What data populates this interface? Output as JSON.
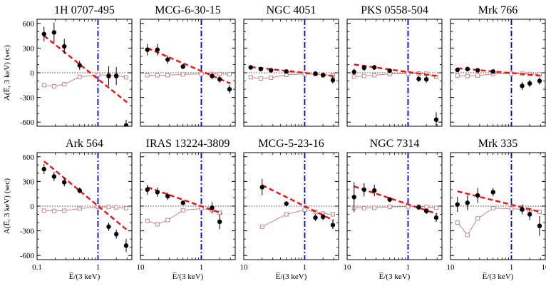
{
  "figure": {
    "ylabel": "A(E̅, 3 keV) (sec)",
    "xlabel": "E̅/(3 keV)",
    "xticks": [
      "0.1",
      "1",
      "10"
    ],
    "yticks": [
      "600",
      "300",
      "0",
      "-300",
      "-600"
    ],
    "colors": {
      "points": "#000000",
      "fit": "#ee1111",
      "model": "#c08888",
      "vline": "#0000ee"
    }
  },
  "chart_data": [
    {
      "type": "scatter",
      "title": "1H 0707-495",
      "xlabel": "E̅/(3 keV)",
      "ylabel": "A(E̅, 3 keV) (sec)",
      "xscale": "log",
      "xlim": [
        0.1,
        3.6
      ],
      "ylim": [
        -650,
        650
      ],
      "points": [
        {
          "x": 0.13,
          "y": 470,
          "err": 90
        },
        {
          "x": 0.19,
          "y": 490,
          "err": 120
        },
        {
          "x": 0.28,
          "y": 320,
          "err": 90
        },
        {
          "x": 0.5,
          "y": 90,
          "err": 55
        },
        {
          "x": 1.5,
          "y": -40,
          "err": 120
        },
        {
          "x": 2.0,
          "y": -40,
          "err": 110
        },
        {
          "x": 2.9,
          "y": -640,
          "err": 70
        }
      ],
      "fit": [
        {
          "x": 0.13,
          "y": 450
        },
        {
          "x": 3.0,
          "y": -360
        }
      ],
      "model": [
        {
          "x": 0.13,
          "y": -150
        },
        {
          "x": 0.19,
          "y": -165
        },
        {
          "x": 0.28,
          "y": -140
        },
        {
          "x": 0.5,
          "y": -50
        },
        {
          "x": 1.0,
          "y": -25
        },
        {
          "x": 1.5,
          "y": -30
        },
        {
          "x": 2.0,
          "y": -35
        },
        {
          "x": 2.9,
          "y": -55
        }
      ]
    },
    {
      "type": "scatter",
      "title": "MCG-6-30-15",
      "xscale": "log",
      "xlim": [
        0.1,
        3.6
      ],
      "ylim": [
        -650,
        650
      ],
      "points": [
        {
          "x": 0.13,
          "y": 280,
          "err": 70
        },
        {
          "x": 0.19,
          "y": 280,
          "err": 70
        },
        {
          "x": 0.28,
          "y": 160,
          "err": 50
        },
        {
          "x": 0.5,
          "y": 75,
          "err": 30
        },
        {
          "x": 1.5,
          "y": -40,
          "err": 40
        },
        {
          "x": 2.0,
          "y": -80,
          "err": 40
        },
        {
          "x": 2.9,
          "y": -200,
          "err": 50
        }
      ],
      "fit": [
        {
          "x": 0.13,
          "y": 300
        },
        {
          "x": 3.0,
          "y": -130
        }
      ],
      "model": [
        {
          "x": 0.13,
          "y": -30
        },
        {
          "x": 0.19,
          "y": -32
        },
        {
          "x": 0.28,
          "y": -30
        },
        {
          "x": 0.5,
          "y": -20
        },
        {
          "x": 1.0,
          "y": -15
        },
        {
          "x": 1.5,
          "y": -15
        },
        {
          "x": 2.0,
          "y": -15
        },
        {
          "x": 2.9,
          "y": -18
        }
      ]
    },
    {
      "type": "scatter",
      "title": "NGC 4051",
      "xscale": "log",
      "xlim": [
        0.1,
        3.6
      ],
      "ylim": [
        -650,
        650
      ],
      "points": [
        {
          "x": 0.13,
          "y": 65,
          "err": 25
        },
        {
          "x": 0.19,
          "y": 45,
          "err": 20
        },
        {
          "x": 0.28,
          "y": 30,
          "err": 15
        },
        {
          "x": 0.5,
          "y": 15,
          "err": 12
        },
        {
          "x": 1.5,
          "y": -10,
          "err": 15
        },
        {
          "x": 2.0,
          "y": -30,
          "err": 20
        },
        {
          "x": 2.9,
          "y": -90,
          "err": 40
        }
      ],
      "fit": [
        {
          "x": 0.13,
          "y": 70
        },
        {
          "x": 3.0,
          "y": -40
        }
      ],
      "model": [
        {
          "x": 0.13,
          "y": -55
        },
        {
          "x": 0.19,
          "y": -70
        },
        {
          "x": 0.28,
          "y": -60
        },
        {
          "x": 0.5,
          "y": -25
        },
        {
          "x": 1.0,
          "y": -15
        },
        {
          "x": 1.5,
          "y": -18
        },
        {
          "x": 2.0,
          "y": -22
        },
        {
          "x": 2.9,
          "y": -35
        }
      ]
    },
    {
      "type": "scatter",
      "title": "PKS 0558-504",
      "xscale": "log",
      "xlim": [
        0.1,
        3.6
      ],
      "ylim": [
        -650,
        650
      ],
      "points": [
        {
          "x": 0.13,
          "y": 10,
          "err": 40
        },
        {
          "x": 0.19,
          "y": 60,
          "err": 35
        },
        {
          "x": 0.28,
          "y": 65,
          "err": 30
        },
        {
          "x": 0.5,
          "y": 25,
          "err": 20
        },
        {
          "x": 1.5,
          "y": -75,
          "err": 35
        },
        {
          "x": 2.0,
          "y": -80,
          "err": 40
        },
        {
          "x": 2.9,
          "y": -570,
          "err": 90
        }
      ],
      "fit": [
        {
          "x": 0.13,
          "y": 100
        },
        {
          "x": 3.0,
          "y": -40
        }
      ],
      "model": [
        {
          "x": 0.13,
          "y": -45
        },
        {
          "x": 0.19,
          "y": -40
        },
        {
          "x": 0.28,
          "y": -30
        },
        {
          "x": 0.5,
          "y": -15
        },
        {
          "x": 1.0,
          "y": -10
        },
        {
          "x": 1.5,
          "y": -10
        },
        {
          "x": 2.0,
          "y": -12
        },
        {
          "x": 2.9,
          "y": -50
        }
      ]
    },
    {
      "type": "scatter",
      "title": "Mrk 766",
      "xscale": "log",
      "xlim": [
        0.1,
        3.6
      ],
      "ylim": [
        -650,
        650
      ],
      "points": [
        {
          "x": 0.13,
          "y": 35,
          "err": 25
        },
        {
          "x": 0.19,
          "y": 45,
          "err": 20
        },
        {
          "x": 0.28,
          "y": 30,
          "err": 20
        },
        {
          "x": 0.5,
          "y": 15,
          "err": 15
        },
        {
          "x": 1.5,
          "y": -160,
          "err": 50
        },
        {
          "x": 2.0,
          "y": -130,
          "err": 45
        },
        {
          "x": 2.9,
          "y": -100,
          "err": 45
        }
      ],
      "fit": [
        {
          "x": 0.13,
          "y": 55
        },
        {
          "x": 3.0,
          "y": -35
        }
      ],
      "model": [
        {
          "x": 0.13,
          "y": -35
        },
        {
          "x": 0.19,
          "y": -40
        },
        {
          "x": 0.28,
          "y": -35
        },
        {
          "x": 0.5,
          "y": -15
        },
        {
          "x": 1.0,
          "y": -10
        },
        {
          "x": 1.5,
          "y": -12
        },
        {
          "x": 2.0,
          "y": -15
        },
        {
          "x": 2.9,
          "y": -20
        }
      ]
    },
    {
      "type": "scatter",
      "title": "Ark 564",
      "xscale": "log",
      "xlim": [
        0.1,
        3.6
      ],
      "ylim": [
        -650,
        650
      ],
      "points": [
        {
          "x": 0.13,
          "y": 450,
          "err": 60
        },
        {
          "x": 0.19,
          "y": 360,
          "err": 55
        },
        {
          "x": 0.28,
          "y": 290,
          "err": 50
        },
        {
          "x": 0.5,
          "y": 190,
          "err": 35
        },
        {
          "x": 1.5,
          "y": -250,
          "err": 50
        },
        {
          "x": 2.0,
          "y": -340,
          "err": 55
        },
        {
          "x": 2.9,
          "y": -480,
          "err": 80
        }
      ],
      "fit": [
        {
          "x": 0.13,
          "y": 545
        },
        {
          "x": 3.0,
          "y": -290
        }
      ],
      "model": [
        {
          "x": 0.13,
          "y": -55
        },
        {
          "x": 0.19,
          "y": -58
        },
        {
          "x": 0.28,
          "y": -55
        },
        {
          "x": 0.5,
          "y": -30
        },
        {
          "x": 1.0,
          "y": -10
        },
        {
          "x": 1.5,
          "y": -10
        },
        {
          "x": 2.0,
          "y": -15
        },
        {
          "x": 2.9,
          "y": -25
        }
      ]
    },
    {
      "type": "scatter",
      "title": "IRAS 13224-3809",
      "xscale": "log",
      "xlim": [
        0.1,
        3.6
      ],
      "ylim": [
        -650,
        650
      ],
      "points": [
        {
          "x": 0.13,
          "y": 200,
          "err": 60
        },
        {
          "x": 0.19,
          "y": 170,
          "err": 55
        },
        {
          "x": 0.28,
          "y": 120,
          "err": 45
        },
        {
          "x": 0.5,
          "y": 40,
          "err": 25
        },
        {
          "x": 1.5,
          "y": -20,
          "err": 70
        },
        {
          "x": 2.0,
          "y": -190,
          "err": 90
        }
      ],
      "fit": [
        {
          "x": 0.13,
          "y": 230
        },
        {
          "x": 2.2,
          "y": -90
        }
      ],
      "model": [
        {
          "x": 0.13,
          "y": -180
        },
        {
          "x": 0.19,
          "y": -220
        },
        {
          "x": 0.28,
          "y": -170
        },
        {
          "x": 0.5,
          "y": -50
        },
        {
          "x": 1.0,
          "y": -30
        },
        {
          "x": 1.5,
          "y": -50
        },
        {
          "x": 2.0,
          "y": -80
        }
      ]
    },
    {
      "type": "scatter",
      "title": "MCG-5-23-16",
      "xscale": "log",
      "xlim": [
        0.1,
        3.6
      ],
      "ylim": [
        -650,
        650
      ],
      "points": [
        {
          "x": 0.2,
          "y": 230,
          "err": 100
        },
        {
          "x": 0.5,
          "y": 30,
          "err": 30
        },
        {
          "x": 1.5,
          "y": -140,
          "err": 40
        },
        {
          "x": 2.0,
          "y": -130,
          "err": 40
        },
        {
          "x": 2.9,
          "y": -230,
          "err": 50
        }
      ],
      "fit": [
        {
          "x": 0.2,
          "y": 255
        },
        {
          "x": 3.0,
          "y": -175
        }
      ],
      "model": [
        {
          "x": 0.2,
          "y": -250
        },
        {
          "x": 0.5,
          "y": -100
        },
        {
          "x": 1.0,
          "y": -45
        },
        {
          "x": 1.5,
          "y": -70
        },
        {
          "x": 2.0,
          "y": -90
        },
        {
          "x": 2.9,
          "y": -100
        }
      ]
    },
    {
      "type": "scatter",
      "title": "NGC 7314",
      "xscale": "log",
      "xlim": [
        0.1,
        3.6
      ],
      "ylim": [
        -650,
        650
      ],
      "points": [
        {
          "x": 0.13,
          "y": 110,
          "err": 180
        },
        {
          "x": 0.19,
          "y": 200,
          "err": 80
        },
        {
          "x": 0.28,
          "y": 190,
          "err": 70
        },
        {
          "x": 0.5,
          "y": 80,
          "err": 30
        },
        {
          "x": 1.5,
          "y": -15,
          "err": 25
        },
        {
          "x": 2.0,
          "y": -60,
          "err": 35
        },
        {
          "x": 2.9,
          "y": -140,
          "err": 50
        }
      ],
      "fit": [
        {
          "x": 0.13,
          "y": 240
        },
        {
          "x": 3.0,
          "y": -95
        }
      ],
      "model": [
        {
          "x": 0.13,
          "y": -20
        },
        {
          "x": 0.19,
          "y": -25
        },
        {
          "x": 0.28,
          "y": -20
        },
        {
          "x": 0.5,
          "y": -10
        },
        {
          "x": 1.0,
          "y": -5
        },
        {
          "x": 1.5,
          "y": -5
        },
        {
          "x": 2.0,
          "y": -10
        },
        {
          "x": 2.9,
          "y": -20
        }
      ]
    },
    {
      "type": "scatter",
      "title": "Mrk 335",
      "xscale": "log",
      "xlim": [
        0.1,
        3.6
      ],
      "ylim": [
        -650,
        650
      ],
      "points": [
        {
          "x": 0.13,
          "y": 20,
          "err": 90
        },
        {
          "x": 0.19,
          "y": 40,
          "err": 90
        },
        {
          "x": 0.28,
          "y": 130,
          "err": 90
        },
        {
          "x": 0.5,
          "y": 170,
          "err": 50
        },
        {
          "x": 1.5,
          "y": -40,
          "err": 60
        },
        {
          "x": 2.0,
          "y": -100,
          "err": 70
        },
        {
          "x": 2.9,
          "y": -240,
          "err": 120
        }
      ],
      "fit": [
        {
          "x": 0.13,
          "y": 180
        },
        {
          "x": 3.0,
          "y": -70
        }
      ],
      "model": [
        {
          "x": 0.13,
          "y": -200
        },
        {
          "x": 0.19,
          "y": -350
        },
        {
          "x": 0.28,
          "y": -150
        },
        {
          "x": 0.5,
          "y": -25
        },
        {
          "x": 1.0,
          "y": -30
        },
        {
          "x": 1.5,
          "y": -40
        },
        {
          "x": 2.0,
          "y": -50
        },
        {
          "x": 2.9,
          "y": -70
        }
      ]
    }
  ]
}
